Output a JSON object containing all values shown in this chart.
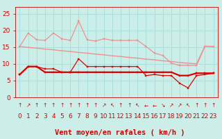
{
  "title": "Vent moyen/en rafales ( km/h )",
  "background_color": "#cceee8",
  "grid_color": "#aadddd",
  "x_labels": [
    "0",
    "1",
    "2",
    "3",
    "4",
    "5",
    "6",
    "7",
    "8",
    "9",
    "10",
    "11",
    "12",
    "13",
    "14",
    "15",
    "16",
    "17",
    "18",
    "19",
    "20",
    "21",
    "22",
    "23"
  ],
  "ylim": [
    0,
    27
  ],
  "yticks": [
    0,
    5,
    10,
    15,
    20,
    25
  ],
  "series": [
    {
      "y": [
        15.2,
        14.9,
        14.7,
        14.4,
        14.2,
        13.9,
        13.7,
        13.4,
        13.2,
        12.9,
        12.7,
        12.4,
        12.2,
        11.9,
        11.7,
        11.4,
        11.2,
        10.9,
        10.7,
        10.4,
        10.2,
        10.0,
        15.3,
        15.2
      ],
      "color": "#f09090",
      "linewidth": 1.0,
      "marker": null
    },
    {
      "y": [
        15.2,
        19.2,
        17.2,
        17.0,
        19.2,
        17.5,
        17.0,
        22.8,
        17.2,
        16.8,
        17.5,
        17.0,
        17.0,
        17.0,
        17.0,
        15.2,
        13.2,
        12.5,
        10.2,
        9.5,
        9.5,
        9.5,
        15.2,
        15.2
      ],
      "color": "#f09090",
      "linewidth": 0.9,
      "marker": "s",
      "markersize": 2.0
    },
    {
      "y": [
        6.8,
        9.2,
        9.2,
        8.5,
        8.5,
        7.5,
        7.5,
        11.5,
        9.2,
        9.2,
        9.2,
        9.2,
        9.2,
        9.2,
        9.2,
        6.5,
        6.8,
        6.5,
        6.5,
        4.2,
        2.8,
        6.5,
        6.8,
        7.2
      ],
      "color": "#dd0000",
      "linewidth": 0.9,
      "marker": "s",
      "markersize": 2.0
    },
    {
      "y": [
        6.8,
        9.2,
        9.2,
        7.5,
        7.5,
        7.5,
        7.5,
        7.5,
        7.5,
        7.5,
        7.5,
        7.5,
        7.5,
        7.5,
        7.5,
        7.5,
        7.5,
        7.5,
        7.5,
        6.5,
        6.5,
        7.2,
        7.2,
        7.2
      ],
      "color": "#dd0000",
      "linewidth": 1.6,
      "marker": "s",
      "markersize": 2.0
    }
  ],
  "arrow_symbols": [
    "↑",
    "↗",
    "↑",
    "↑",
    "↑",
    "↑",
    "↑",
    "↑",
    "↑",
    "↑",
    "↗",
    "↖",
    "↑",
    "↑",
    "↖",
    "←",
    "←",
    "↘",
    "↗",
    "↗",
    "↖",
    "↑",
    "↑",
    "↑"
  ],
  "xlabel_fontsize": 7.5,
  "tick_fontsize": 6.5,
  "arrow_fontsize": 5.5,
  "label_color": "#cc0000"
}
